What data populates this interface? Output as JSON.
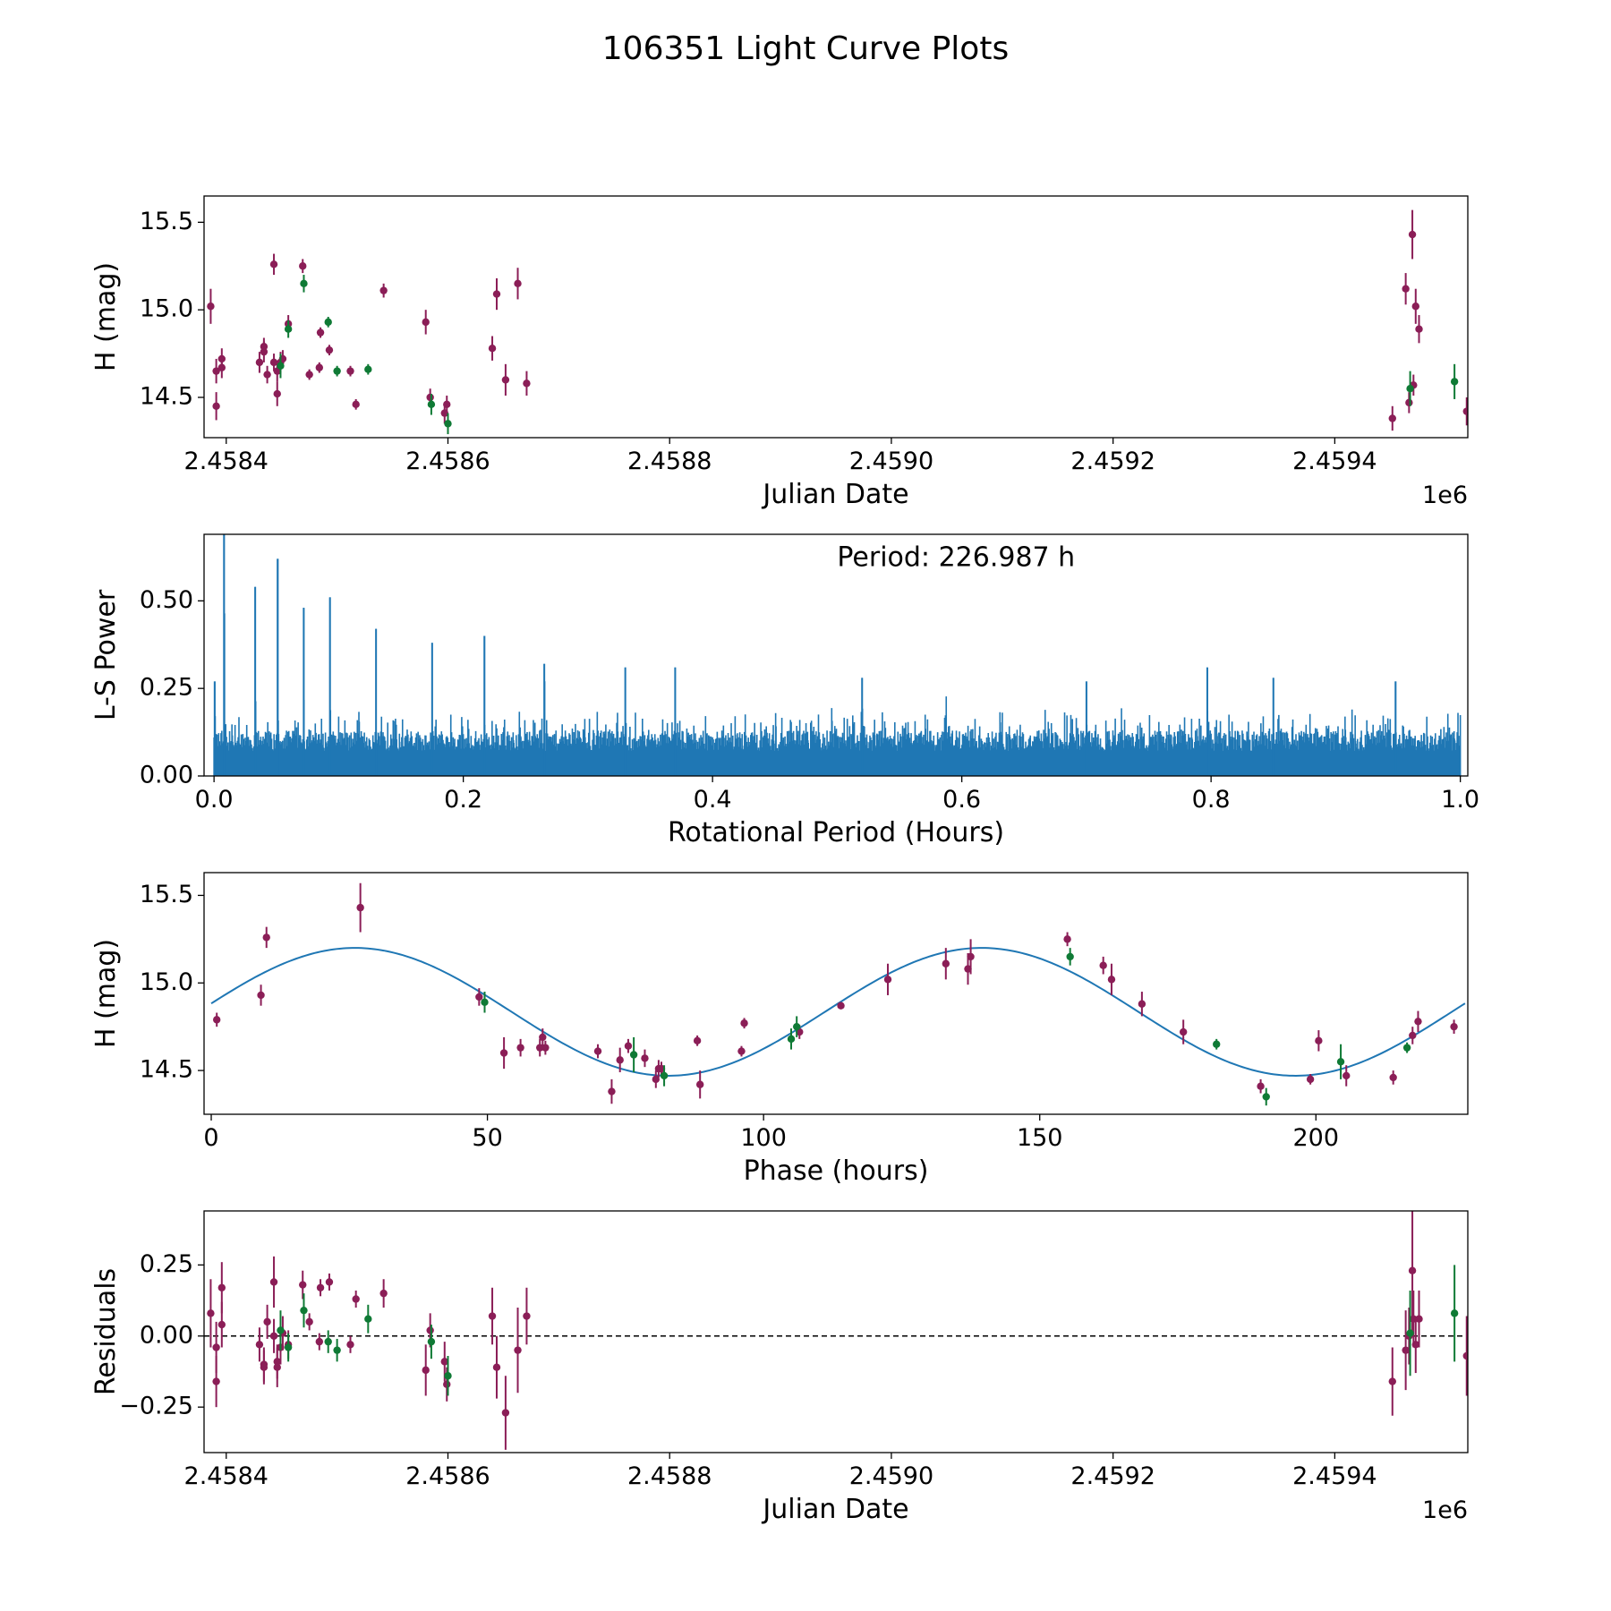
{
  "figure_title": "106351 Light Curve Plots",
  "colors": {
    "primary": "#8b1e57",
    "secondary": "#0f7a35",
    "curve": "#1f77b4",
    "axis": "#000000"
  },
  "chart_data": [
    {
      "id": "lightcurve",
      "type": "scatter",
      "title": "",
      "xlabel": "Julian Date",
      "ylabel": "H (mag)",
      "offset_text": "1e6",
      "xlim": [
        2.45838,
        2.45952
      ],
      "ylim": [
        14.27,
        15.65
      ],
      "xticks": [
        2.4584,
        2.4586,
        2.4588,
        2.459,
        2.4592,
        2.4594
      ],
      "xtick_labels": [
        "2.4584",
        "2.4586",
        "2.4588",
        "2.4590",
        "2.4592",
        "2.4594"
      ],
      "yticks": [
        14.5,
        15.0,
        15.5
      ],
      "ytick_labels": [
        "14.5",
        "15.0",
        "15.5"
      ],
      "series": [
        {
          "name": "primary",
          "color": "#8b1e57",
          "points": [
            [
              2.458386,
              15.02,
              0.1
            ],
            [
              2.458391,
              14.65,
              0.07
            ],
            [
              2.458391,
              14.45,
              0.08
            ],
            [
              2.458396,
              14.67,
              0.06
            ],
            [
              2.458396,
              14.72,
              0.06
            ],
            [
              2.45843,
              14.7,
              0.06
            ],
            [
              2.458434,
              14.76,
              0.06
            ],
            [
              2.458434,
              14.79,
              0.05
            ],
            [
              2.458437,
              14.63,
              0.05
            ],
            [
              2.458443,
              15.26,
              0.06
            ],
            [
              2.458443,
              14.7,
              0.05
            ],
            [
              2.458446,
              14.65,
              0.06
            ],
            [
              2.458446,
              14.52,
              0.07
            ],
            [
              2.458449,
              14.7,
              0.06
            ],
            [
              2.458451,
              14.72,
              0.05
            ],
            [
              2.458456,
              14.92,
              0.05
            ],
            [
              2.458469,
              15.25,
              0.04
            ],
            [
              2.458475,
              14.63,
              0.03
            ],
            [
              2.458484,
              14.67,
              0.03
            ],
            [
              2.458485,
              14.87,
              0.03
            ],
            [
              2.458493,
              14.77,
              0.03
            ],
            [
              2.458512,
              14.65,
              0.03
            ],
            [
              2.458517,
              14.46,
              0.03
            ],
            [
              2.458542,
              15.11,
              0.04
            ],
            [
              2.45858,
              14.93,
              0.07
            ],
            [
              2.458584,
              14.5,
              0.05
            ],
            [
              2.458597,
              14.41,
              0.06
            ],
            [
              2.458599,
              14.46,
              0.05
            ],
            [
              2.45864,
              14.78,
              0.07
            ],
            [
              2.458644,
              15.09,
              0.09
            ],
            [
              2.458652,
              14.6,
              0.09
            ],
            [
              2.458663,
              15.15,
              0.09
            ],
            [
              2.458671,
              14.58,
              0.07
            ],
            [
              2.459452,
              14.38,
              0.07
            ],
            [
              2.459464,
              15.12,
              0.09
            ],
            [
              2.459467,
              14.47,
              0.06
            ],
            [
              2.45947,
              15.43,
              0.14
            ],
            [
              2.459471,
              14.57,
              0.06
            ],
            [
              2.459473,
              15.02,
              0.1
            ],
            [
              2.459476,
              14.89,
              0.08
            ],
            [
              2.459519,
              14.42,
              0.08
            ]
          ]
        },
        {
          "name": "secondary",
          "color": "#0f7a35",
          "points": [
            [
              2.458449,
              14.68,
              0.07
            ],
            [
              2.458456,
              14.89,
              0.05
            ],
            [
              2.45847,
              15.15,
              0.05
            ],
            [
              2.458492,
              14.93,
              0.03
            ],
            [
              2.4585,
              14.65,
              0.03
            ],
            [
              2.458528,
              14.66,
              0.03
            ],
            [
              2.458585,
              14.46,
              0.06
            ],
            [
              2.4586,
              14.35,
              0.06
            ],
            [
              2.459468,
              14.55,
              0.1
            ],
            [
              2.459508,
              14.59,
              0.1
            ]
          ]
        }
      ]
    },
    {
      "id": "periodogram",
      "type": "line",
      "title": "",
      "xlabel": "Rotational Period (Hours)",
      "ylabel": "L-S Power",
      "annotation": "Period: 226.987 h",
      "xlim": [
        -0.008,
        1.006
      ],
      "ylim": [
        0.0,
        0.69
      ],
      "xticks": [
        0.0,
        0.2,
        0.4,
        0.6,
        0.8,
        1.0
      ],
      "xtick_labels": [
        "0.0",
        "0.2",
        "0.4",
        "0.6",
        "0.8",
        "1.0"
      ],
      "yticks": [
        0.0,
        0.25,
        0.5
      ],
      "ytick_labels": [
        "0.00",
        "0.25",
        "0.50"
      ],
      "x_range": [
        0.0,
        1.0
      ],
      "baseline_level": 0.13,
      "noise_level": 0.06,
      "peaks": [
        [
          0.0005,
          0.27
        ],
        [
          0.008,
          0.69
        ],
        [
          0.033,
          0.54
        ],
        [
          0.051,
          0.62
        ],
        [
          0.072,
          0.48
        ],
        [
          0.093,
          0.51
        ],
        [
          0.13,
          0.42
        ],
        [
          0.175,
          0.38
        ],
        [
          0.217,
          0.4
        ],
        [
          0.265,
          0.32
        ],
        [
          0.33,
          0.31
        ],
        [
          0.37,
          0.31
        ],
        [
          0.52,
          0.28
        ],
        [
          0.7,
          0.27
        ],
        [
          0.797,
          0.31
        ],
        [
          0.85,
          0.28
        ],
        [
          0.948,
          0.27
        ]
      ]
    },
    {
      "id": "phased",
      "type": "scatter",
      "title": "",
      "xlabel": "Phase (hours)",
      "ylabel": "H (mag)",
      "xlim": [
        -1.3,
        227.5
      ],
      "ylim": [
        14.25,
        15.63
      ],
      "xticks": [
        0,
        50,
        100,
        150,
        200
      ],
      "xtick_labels": [
        "0",
        "50",
        "100",
        "150",
        "200"
      ],
      "yticks": [
        14.5,
        15.0,
        15.5
      ],
      "ytick_labels": [
        "14.5",
        "15.0",
        "15.5"
      ],
      "model": {
        "mean": 14.835,
        "amplitude": 0.365,
        "period": 113.49,
        "peak_phase": 26.0,
        "x_range": [
          0.0,
          227.0
        ]
      },
      "series": [
        {
          "name": "primary",
          "color": "#8b1e57",
          "points": [
            [
              1,
              14.79,
              0.04
            ],
            [
              9,
              14.93,
              0.06
            ],
            [
              10,
              15.26,
              0.06
            ],
            [
              27,
              15.43,
              0.14
            ],
            [
              48.5,
              14.92,
              0.05
            ],
            [
              53,
              14.6,
              0.09
            ],
            [
              56,
              14.63,
              0.05
            ],
            [
              59.5,
              14.63,
              0.05
            ],
            [
              60,
              14.69,
              0.05
            ],
            [
              60.5,
              14.63,
              0.04
            ],
            [
              70,
              14.61,
              0.04
            ],
            [
              72.5,
              14.38,
              0.07
            ],
            [
              74,
              14.56,
              0.07
            ],
            [
              75.5,
              14.64,
              0.04
            ],
            [
              78.5,
              14.57,
              0.05
            ],
            [
              80.5,
              14.45,
              0.05
            ],
            [
              81,
              14.51,
              0.05
            ],
            [
              81.5,
              14.51,
              0.04
            ],
            [
              88,
              14.67,
              0.03
            ],
            [
              88.5,
              14.42,
              0.08
            ],
            [
              96,
              14.61,
              0.03
            ],
            [
              96.5,
              14.77,
              0.03
            ],
            [
              106.5,
              14.72,
              0.04
            ],
            [
              114,
              14.87,
              0.02
            ],
            [
              122.5,
              15.02,
              0.09
            ],
            [
              133,
              15.11,
              0.09
            ],
            [
              137,
              15.08,
              0.09
            ],
            [
              137.5,
              15.15,
              0.1
            ],
            [
              155,
              15.25,
              0.04
            ],
            [
              161.5,
              15.1,
              0.05
            ],
            [
              163,
              15.02,
              0.09
            ],
            [
              168.5,
              14.88,
              0.07
            ],
            [
              176,
              14.72,
              0.07
            ],
            [
              190,
              14.41,
              0.04
            ],
            [
              199,
              14.45,
              0.03
            ],
            [
              200.5,
              14.67,
              0.06
            ],
            [
              205.5,
              14.47,
              0.06
            ],
            [
              214,
              14.46,
              0.04
            ],
            [
              217.5,
              14.7,
              0.05
            ],
            [
              218.5,
              14.78,
              0.06
            ],
            [
              225,
              14.75,
              0.04
            ]
          ]
        },
        {
          "name": "secondary",
          "color": "#0f7a35",
          "points": [
            [
              49.5,
              14.89,
              0.06
            ],
            [
              76.5,
              14.59,
              0.1
            ],
            [
              82,
              14.47,
              0.06
            ],
            [
              105,
              14.68,
              0.06
            ],
            [
              106,
              14.75,
              0.06
            ],
            [
              155.5,
              15.15,
              0.05
            ],
            [
              182,
              14.65,
              0.03
            ],
            [
              191,
              14.35,
              0.05
            ],
            [
              204.5,
              14.55,
              0.1
            ],
            [
              216.5,
              14.63,
              0.03
            ]
          ]
        }
      ]
    },
    {
      "id": "residuals",
      "type": "scatter",
      "title": "",
      "xlabel": "Julian Date",
      "ylabel": "Residuals",
      "offset_text": "1e6",
      "xlim": [
        2.45838,
        2.45952
      ],
      "ylim": [
        -0.41,
        0.44
      ],
      "reference_line": 0.0,
      "xticks": [
        2.4584,
        2.4586,
        2.4588,
        2.459,
        2.4592,
        2.4594
      ],
      "xtick_labels": [
        "2.4584",
        "2.4586",
        "2.4588",
        "2.4590",
        "2.4592",
        "2.4594"
      ],
      "yticks": [
        -0.25,
        0.0,
        0.25
      ],
      "ytick_labels": [
        "−0.25",
        "0.00",
        "0.25"
      ],
      "series": [
        {
          "name": "primary",
          "color": "#8b1e57",
          "points": [
            [
              2.458386,
              0.08,
              0.12
            ],
            [
              2.458391,
              -0.16,
              0.09
            ],
            [
              2.458391,
              -0.04,
              0.09
            ],
            [
              2.458396,
              0.04,
              0.08
            ],
            [
              2.458396,
              0.17,
              0.09
            ],
            [
              2.45843,
              -0.03,
              0.06
            ],
            [
              2.458434,
              -0.1,
              0.06
            ],
            [
              2.458434,
              -0.11,
              0.06
            ],
            [
              2.458437,
              0.05,
              0.06
            ],
            [
              2.458443,
              0.19,
              0.09
            ],
            [
              2.458443,
              0.0,
              0.06
            ],
            [
              2.458446,
              -0.09,
              0.06
            ],
            [
              2.458446,
              -0.11,
              0.07
            ],
            [
              2.458449,
              -0.04,
              0.06
            ],
            [
              2.458451,
              0.01,
              0.06
            ],
            [
              2.458456,
              -0.03,
              0.05
            ],
            [
              2.458469,
              0.18,
              0.05
            ],
            [
              2.458475,
              0.05,
              0.03
            ],
            [
              2.458484,
              -0.02,
              0.03
            ],
            [
              2.458485,
              0.17,
              0.03
            ],
            [
              2.458493,
              0.19,
              0.03
            ],
            [
              2.458512,
              -0.03,
              0.03
            ],
            [
              2.458517,
              0.13,
              0.03
            ],
            [
              2.458542,
              0.15,
              0.05
            ],
            [
              2.45858,
              -0.12,
              0.09
            ],
            [
              2.458584,
              0.02,
              0.06
            ],
            [
              2.458597,
              -0.09,
              0.07
            ],
            [
              2.458599,
              -0.17,
              0.06
            ],
            [
              2.45864,
              0.07,
              0.1
            ],
            [
              2.458644,
              -0.11,
              0.11
            ],
            [
              2.458652,
              -0.27,
              0.13
            ],
            [
              2.458663,
              -0.05,
              0.15
            ],
            [
              2.458671,
              0.07,
              0.1
            ],
            [
              2.459452,
              -0.16,
              0.12
            ],
            [
              2.459464,
              -0.05,
              0.14
            ],
            [
              2.459467,
              0.0,
              0.1
            ],
            [
              2.45947,
              0.23,
              0.21
            ],
            [
              2.459471,
              0.06,
              0.1
            ],
            [
              2.459473,
              -0.03,
              0.1
            ],
            [
              2.459476,
              0.06,
              0.1
            ],
            [
              2.459519,
              -0.07,
              0.14
            ]
          ]
        },
        {
          "name": "secondary",
          "color": "#0f7a35",
          "points": [
            [
              2.458449,
              0.02,
              0.07
            ],
            [
              2.458456,
              -0.04,
              0.05
            ],
            [
              2.45847,
              0.09,
              0.06
            ],
            [
              2.458492,
              -0.02,
              0.04
            ],
            [
              2.4585,
              -0.05,
              0.04
            ],
            [
              2.458528,
              0.06,
              0.05
            ],
            [
              2.458585,
              -0.02,
              0.06
            ],
            [
              2.4586,
              -0.14,
              0.07
            ],
            [
              2.459468,
              0.01,
              0.15
            ],
            [
              2.459508,
              0.08,
              0.17
            ]
          ]
        }
      ]
    }
  ]
}
